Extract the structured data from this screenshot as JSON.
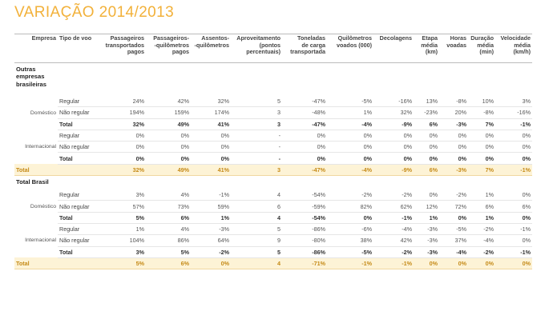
{
  "title": "VARIAÇÃO 2014/2013",
  "columns": [
    "Empresa",
    "Tipo de voo",
    "Passageiros transportados pagos",
    "Passageiros--quilômetros pagos",
    "Assentos--quilômetros",
    "Aproveitamento (pontos percentuais)",
    "Toneladas de carga transportada",
    "Quilômetros voados (000)",
    "Decolagens",
    "Etapa média (km)",
    "Horas voadas",
    "Duração média (min)",
    "Velocidade média (km/h)"
  ],
  "headers": {
    "empresa": "Empresa",
    "tipo": "Tipo de voo",
    "pax_l1": "Passageiros",
    "pax_l2": "transportados",
    "pax_l3": "pagos",
    "pkm_l1": "Passageiros-",
    "pkm_l2": "-quilômetros",
    "pkm_l3": "pagos",
    "akm_l1": "Assentos-",
    "akm_l2": "-quilômetros",
    "apr_l1": "Aproveitamento",
    "apr_l2": "(pontos",
    "apr_l3": "percentuais)",
    "ton_l1": "Toneladas",
    "ton_l2": "de carga",
    "ton_l3": "transportada",
    "qv_l1": "Quilômetros",
    "qv_l2": "voados (000)",
    "dec": "Decolagens",
    "et_l1": "Etapa",
    "et_l2": "média",
    "et_l3": "(km)",
    "hv_l1": "Horas",
    "hv_l2": "voadas",
    "dm_l1": "Duração",
    "dm_l2": "média",
    "dm_l3": "(min)",
    "vm_l1": "Velocidade",
    "vm_l2": "média",
    "vm_l3": "(km/h)"
  },
  "sections": [
    {
      "name_l1": "Outras",
      "name_l2": "empresas",
      "name_l3": "brasileiras",
      "groups": [
        {
          "segment": "Doméstico",
          "rows": [
            {
              "tipo": "Regular",
              "v": [
                "24%",
                "42%",
                "32%",
                "5",
                "-47%",
                "-5%",
                "-16%",
                "13%",
                "-8%",
                "10%",
                "3%"
              ]
            },
            {
              "tipo": "Não regular",
              "v": [
                "194%",
                "159%",
                "174%",
                "3",
                "-48%",
                "1%",
                "32%",
                "-23%",
                "20%",
                "-8%",
                "-16%"
              ]
            },
            {
              "tipo": "Total",
              "v": [
                "32%",
                "49%",
                "41%",
                "3",
                "-47%",
                "-4%",
                "-9%",
                "6%",
                "-3%",
                "7%",
                "-1%"
              ]
            }
          ]
        },
        {
          "segment": "Internacional",
          "rows": [
            {
              "tipo": "Regular",
              "v": [
                "0%",
                "0%",
                "0%",
                "-",
                "0%",
                "0%",
                "0%",
                "0%",
                "0%",
                "0%",
                "0%"
              ]
            },
            {
              "tipo": "Não regular",
              "v": [
                "0%",
                "0%",
                "0%",
                "-",
                "0%",
                "0%",
                "0%",
                "0%",
                "0%",
                "0%",
                "0%"
              ]
            },
            {
              "tipo": "Total",
              "v": [
                "0%",
                "0%",
                "0%",
                "-",
                "0%",
                "0%",
                "0%",
                "0%",
                "0%",
                "0%",
                "0%"
              ]
            }
          ]
        }
      ],
      "total": {
        "label": "Total",
        "v": [
          "32%",
          "49%",
          "41%",
          "3",
          "-47%",
          "-4%",
          "-9%",
          "6%",
          "-3%",
          "7%",
          "-1%"
        ]
      }
    },
    {
      "name_l1": "Total Brasil",
      "groups": [
        {
          "segment": "Doméstico",
          "rows": [
            {
              "tipo": "Regular",
              "v": [
                "3%",
                "4%",
                "-1%",
                "4",
                "-54%",
                "-2%",
                "-2%",
                "0%",
                "-2%",
                "1%",
                "0%"
              ]
            },
            {
              "tipo": "Não regular",
              "v": [
                "57%",
                "73%",
                "59%",
                "6",
                "-59%",
                "82%",
                "62%",
                "12%",
                "72%",
                "6%",
                "6%"
              ]
            },
            {
              "tipo": "Total",
              "v": [
                "5%",
                "6%",
                "1%",
                "4",
                "-54%",
                "0%",
                "-1%",
                "1%",
                "0%",
                "1%",
                "0%"
              ]
            }
          ]
        },
        {
          "segment": "Internacional",
          "rows": [
            {
              "tipo": "Regular",
              "v": [
                "1%",
                "4%",
                "-3%",
                "5",
                "-86%",
                "-6%",
                "-4%",
                "-3%",
                "-5%",
                "-2%",
                "-1%"
              ]
            },
            {
              "tipo": "Não regular",
              "v": [
                "104%",
                "86%",
                "64%",
                "9",
                "-80%",
                "38%",
                "42%",
                "-3%",
                "37%",
                "-4%",
                "0%"
              ]
            },
            {
              "tipo": "Total",
              "v": [
                "3%",
                "5%",
                "-2%",
                "5",
                "-86%",
                "-5%",
                "-2%",
                "-3%",
                "-4%",
                "-2%",
                "-1%"
              ]
            }
          ]
        }
      ],
      "total": {
        "label": "Total",
        "v": [
          "5%",
          "6%",
          "0%",
          "4",
          "-71%",
          "-1%",
          "-1%",
          "0%",
          "0%",
          "0%",
          "0%"
        ]
      }
    }
  ],
  "colors": {
    "title": "#f2b13a",
    "total_bg": "#fdf3d6",
    "total_text": "#c58a17"
  }
}
